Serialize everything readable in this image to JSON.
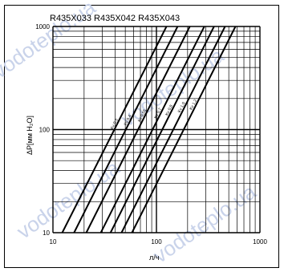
{
  "watermark": {
    "text": "vodoteplo.ua",
    "color": "#c9d3ea"
  },
  "chart_data": {
    "type": "line",
    "title": "R435X033  R435X042  R435X043",
    "xlabel": "л/ч",
    "ylabel": "ΔP[мм H₂O]",
    "xscale": "log",
    "yscale": "log",
    "xlim": [
      10,
      1000
    ],
    "ylim": [
      10,
      1000
    ],
    "xticks": [
      "10",
      "100",
      "1000"
    ],
    "yticks": [
      "10",
      "100",
      "1000"
    ],
    "grid": true,
    "line_color": "#000000",
    "series": [
      {
        "name": "Kv 0,3",
        "values": [
          [
            12.3,
            10
          ],
          [
            125,
            1000
          ]
        ]
      },
      {
        "name": "Kv 0,4",
        "values": [
          [
            16,
            10
          ],
          [
            160,
            1000
          ]
        ]
      },
      {
        "name": "Kv 0,55",
        "values": [
          [
            21,
            10
          ],
          [
            210,
            1000
          ]
        ]
      },
      {
        "name": "Kv 0,7",
        "values": [
          [
            29,
            10
          ],
          [
            290,
            1000
          ]
        ]
      },
      {
        "name": "Kv 0,8",
        "values": [
          [
            36,
            10
          ],
          [
            360,
            1000
          ]
        ]
      },
      {
        "name": "Kv 1,0",
        "values": [
          [
            46,
            10
          ],
          [
            460,
            1000
          ]
        ]
      },
      {
        "name": "Kv 1,2",
        "values": [
          [
            58,
            10
          ],
          [
            580,
            1000
          ]
        ]
      }
    ]
  }
}
